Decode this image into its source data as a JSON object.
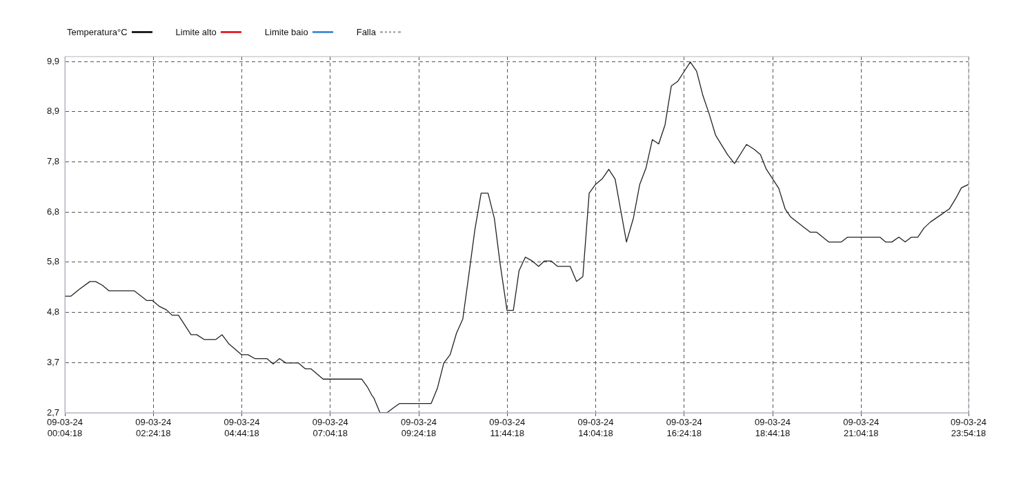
{
  "chart_data": {
    "type": "line",
    "x": [
      "--03-09T00:04:18",
      "--03-09T00:14",
      "--03-09T00:27",
      "--03-09T00:44",
      "--03-09T00:53",
      "--03-09T01:04",
      "--03-09T01:14",
      "--03-09T01:54",
      "--03-09T02:05",
      "--03-09T02:14",
      "--03-09T02:23",
      "--03-09T02:34",
      "--03-09T02:45",
      "--03-09T02:54",
      "--03-09T03:04",
      "--03-09T03:24",
      "--03-09T03:33",
      "--03-09T03:45",
      "--03-09T04:03",
      "--03-09T04:13",
      "--03-09T04:24",
      "--03-09T04:44",
      "--03-09T04:54",
      "--03-09T05:05",
      "--03-09T05:24",
      "--03-09T05:34",
      "--03-09T05:44",
      "--03-09T05:54",
      "--03-09T06:14",
      "--03-09T06:25",
      "--03-09T06:34",
      "--03-09T06:53",
      "--03-09T07:54",
      "--03-09T08:03",
      "--03-09T08:10",
      "--03-09T08:13",
      "--03-09T08:23",
      "--03-09T08:34",
      "--03-09T08:44",
      "--03-09T08:54",
      "--03-09T09:44",
      "--03-09T09:54",
      "--03-09T10:04",
      "--03-09T10:14",
      "--03-09T10:24",
      "--03-09T10:34",
      "--03-09T10:43",
      "--03-09T10:53",
      "--03-09T11:03",
      "--03-09T11:14",
      "--03-09T11:24",
      "--03-09T11:33",
      "--03-09T11:44",
      "--03-09T11:54",
      "--03-09T12:03",
      "--03-09T12:13",
      "--03-09T12:24",
      "--03-09T12:34",
      "--03-09T12:43",
      "--03-09T12:54",
      "--03-09T13:04",
      "--03-09T13:24",
      "--03-09T13:34",
      "--03-09T13:44",
      "--03-09T13:54",
      "--03-09T14:04",
      "--03-09T14:15",
      "--03-09T14:25",
      "--03-09T14:35",
      "--03-09T14:53",
      "--03-09T15:04",
      "--03-09T15:14",
      "--03-09T15:24",
      "--03-09T15:34",
      "--03-09T15:44",
      "--03-09T15:54",
      "--03-09T16:04",
      "--03-09T16:14",
      "--03-09T16:25",
      "--03-09T16:34",
      "--03-09T16:44",
      "--03-09T16:54",
      "--03-09T17:04",
      "--03-09T17:14",
      "--03-09T17:33",
      "--03-09T17:44",
      "--03-09T18:03",
      "--03-09T18:15",
      "--03-09T18:25",
      "--03-09T18:34",
      "--03-09T18:54",
      "--03-09T19:04",
      "--03-09T19:13",
      "--03-09T19:33",
      "--03-09T19:44",
      "--03-09T19:54",
      "--03-09T20:13",
      "--03-09T20:33",
      "--03-09T20:43",
      "--03-09T21:34",
      "--03-09T21:43",
      "--03-09T21:53",
      "--03-09T22:04",
      "--03-09T22:14",
      "--03-09T22:24",
      "--03-09T22:34",
      "--03-09T22:44",
      "--03-09T22:54",
      "--03-09T23:13",
      "--03-09T23:24",
      "--03-09T23:34",
      "--03-09T23:43",
      "--03-09T23:54:18"
    ],
    "series": [
      {
        "name": "Temperatura°C",
        "color": "#222222",
        "values": [
          5.09,
          5.09,
          5.23,
          5.39,
          5.39,
          5.31,
          5.2,
          5.2,
          5.09,
          5.0,
          5.0,
          4.88,
          4.81,
          4.7,
          4.7,
          4.3,
          4.3,
          4.2,
          4.2,
          4.3,
          4.11,
          3.89,
          3.89,
          3.81,
          3.81,
          3.7,
          3.81,
          3.72,
          3.72,
          3.6,
          3.6,
          3.39,
          3.39,
          3.23,
          3.06,
          3.01,
          2.7,
          2.7,
          2.8,
          2.89,
          2.89,
          3.21,
          3.72,
          3.89,
          4.33,
          4.62,
          5.47,
          6.44,
          7.2,
          7.2,
          6.68,
          5.76,
          4.8,
          4.8,
          5.61,
          5.89,
          5.81,
          5.7,
          5.81,
          5.81,
          5.7,
          5.7,
          5.39,
          5.49,
          7.2,
          7.38,
          7.5,
          7.69,
          7.49,
          6.2,
          6.69,
          7.38,
          7.72,
          8.3,
          8.21,
          8.6,
          9.4,
          9.49,
          9.71,
          9.89,
          9.7,
          9.2,
          8.82,
          8.39,
          7.99,
          7.81,
          8.2,
          8.1,
          7.99,
          7.7,
          7.3,
          6.88,
          6.71,
          6.51,
          6.4,
          6.4,
          6.2,
          6.2,
          6.3,
          6.3,
          6.2,
          6.2,
          6.3,
          6.2,
          6.3,
          6.3,
          6.49,
          6.61,
          6.78,
          6.88,
          7.09,
          7.31,
          7.38
        ]
      },
      {
        "name": "Limite alto",
        "color": "#e8262d",
        "values": [
          null,
          null,
          null,
          null,
          null,
          null,
          null,
          null,
          null,
          null,
          null,
          null,
          null,
          null,
          null,
          null,
          null,
          null,
          null,
          null,
          null,
          null,
          null,
          null,
          null,
          null,
          null,
          null,
          null,
          null,
          null,
          null,
          null,
          null,
          null,
          null,
          null,
          null,
          null,
          null,
          null,
          null,
          null,
          null,
          null,
          null,
          null,
          null,
          null,
          null,
          null,
          null,
          null,
          null,
          null,
          null,
          null,
          null,
          null,
          null,
          null,
          null,
          null,
          null,
          null,
          null,
          null,
          null,
          null,
          null,
          null,
          null,
          null,
          null,
          null,
          null,
          null,
          null,
          null,
          null,
          null,
          null,
          null,
          null,
          null,
          null,
          null,
          null,
          null,
          null,
          null,
          null,
          null,
          null,
          null,
          null,
          null,
          null,
          null,
          null,
          null,
          null,
          null,
          null,
          null,
          null,
          null,
          null,
          null,
          null,
          null,
          null,
          null
        ]
      },
      {
        "name": "Limite baio",
        "color": "#4a90d9",
        "values": [
          null,
          null,
          null,
          null,
          null,
          null,
          null,
          null,
          null,
          null,
          null,
          null,
          null,
          null,
          null,
          null,
          null,
          null,
          null,
          null,
          null,
          null,
          null,
          null,
          null,
          null,
          null,
          null,
          null,
          null,
          null,
          null,
          null,
          null,
          null,
          null,
          null,
          null,
          null,
          null,
          null,
          null,
          null,
          null,
          null,
          null,
          null,
          null,
          null,
          null,
          null,
          null,
          null,
          null,
          null,
          null,
          null,
          null,
          null,
          null,
          null,
          null,
          null,
          null,
          null,
          null,
          null,
          null,
          null,
          null,
          null,
          null,
          null,
          null,
          null,
          null,
          null,
          null,
          null,
          null,
          null,
          null,
          null,
          null,
          null,
          null,
          null,
          null,
          null,
          null,
          null,
          null,
          null,
          null,
          null,
          null,
          null,
          null,
          null,
          null,
          null,
          null,
          null,
          null,
          null,
          null,
          null,
          null,
          null,
          null,
          null,
          null,
          null
        ]
      },
      {
        "name": "Falla",
        "color": "#b4b4b4",
        "line_style": "dotted",
        "values": [
          null,
          null,
          null,
          null,
          null,
          null,
          null,
          null,
          null,
          null,
          null,
          null,
          null,
          null,
          null,
          null,
          null,
          null,
          null,
          null,
          null,
          null,
          null,
          null,
          null,
          null,
          null,
          null,
          null,
          null,
          null,
          null,
          null,
          null,
          null,
          null,
          null,
          null,
          null,
          null,
          null,
          null,
          null,
          null,
          null,
          null,
          null,
          null,
          null,
          null,
          null,
          null,
          null,
          null,
          null,
          null,
          null,
          null,
          null,
          null,
          null,
          null,
          null,
          null,
          null,
          null,
          null,
          null,
          null,
          null,
          null,
          null,
          null,
          null,
          null,
          null,
          null,
          null,
          null,
          null,
          null,
          null,
          null,
          null,
          null,
          null,
          null,
          null,
          null,
          null,
          null,
          null,
          null,
          null,
          null,
          null,
          null,
          null,
          null,
          null,
          null,
          null,
          null,
          null,
          null,
          null,
          null,
          null,
          null,
          null,
          null,
          null,
          null
        ]
      }
    ],
    "xlim": [
      "--03-09T00:04:18",
      "--03-09T23:54:18"
    ],
    "xticks": [
      {
        "value": "--03-09T00:04:18",
        "label": "09-03-24 00:04:18"
      },
      {
        "value": "--03-09T02:24:18",
        "label": "09-03-24 02:24:18"
      },
      {
        "value": "--03-09T04:44:18",
        "label": "09-03-24 04:44:18"
      },
      {
        "value": "--03-09T07:04:18",
        "label": "09-03-24 07:04:18"
      },
      {
        "value": "--03-09T09:24:18",
        "label": "09-03-24 09:24:18"
      },
      {
        "value": "--03-09T11:44:18",
        "label": "09-03-24 11:44:18"
      },
      {
        "value": "--03-09T14:04:18",
        "label": "09-03-24 14:04:18"
      },
      {
        "value": "--03-09T16:24:18",
        "label": "09-03-24 16:24:18"
      },
      {
        "value": "--03-09T18:44:18",
        "label": "09-03-24 18:44:18"
      },
      {
        "value": "--03-09T21:04:18",
        "label": "09-03-24 21:04:18"
      },
      {
        "value": "--03-09T23:54:18",
        "label": "09-03-24 23:54:18"
      }
    ],
    "ylim": [
      2.7,
      10.0
    ],
    "yticks": [
      {
        "value": 2.7,
        "label": "2,7"
      },
      {
        "value": 3.729,
        "label": "3,7"
      },
      {
        "value": 4.757,
        "label": "4,8"
      },
      {
        "value": 5.786,
        "label": "5,8"
      },
      {
        "value": 6.814,
        "label": "6,8"
      },
      {
        "value": 7.843,
        "label": "7,8"
      },
      {
        "value": 8.871,
        "label": "8,9"
      },
      {
        "value": 9.9,
        "label": "9,9"
      }
    ],
    "grid": true,
    "legend": "top left",
    "marker": "none",
    "line_style": "solid"
  }
}
